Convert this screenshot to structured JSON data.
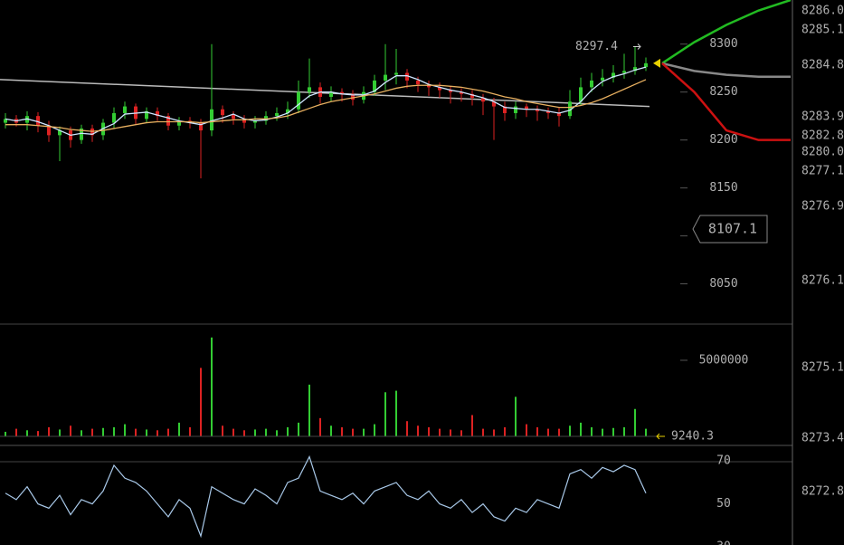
{
  "chart_data": [
    {
      "type": "candlestick",
      "open": [
        8218,
        8222,
        8218,
        8225,
        8215,
        8205,
        8210,
        8200,
        8212,
        8205,
        8218,
        8228,
        8235,
        8222,
        8230,
        8225,
        8215,
        8220,
        8218,
        8210,
        8232,
        8226,
        8222,
        8218,
        8220,
        8225,
        8228,
        8232,
        8250,
        8255,
        8245,
        8250,
        8248,
        8242,
        8250,
        8262,
        8268,
        8270,
        8262,
        8258,
        8255,
        8252,
        8250,
        8248,
        8244,
        8240,
        8235,
        8228,
        8235,
        8232,
        8230,
        8228,
        8225,
        8240,
        8255,
        8262,
        8265,
        8270,
        8272,
        8276
      ],
      "high": [
        8228,
        8226,
        8230,
        8229,
        8220,
        8214,
        8214,
        8216,
        8216,
        8222,
        8234,
        8240,
        8238,
        8234,
        8234,
        8228,
        8224,
        8224,
        8222,
        8300,
        8236,
        8230,
        8226,
        8225,
        8230,
        8234,
        8240,
        8262,
        8285,
        8260,
        8256,
        8254,
        8252,
        8256,
        8268,
        8300,
        8295,
        8274,
        8266,
        8262,
        8260,
        8256,
        8254,
        8252,
        8248,
        8244,
        8240,
        8240,
        8238,
        8236,
        8234,
        8234,
        8252,
        8265,
        8270,
        8274,
        8278,
        8290,
        8297.4,
        8286
      ],
      "low": [
        8212,
        8214,
        8210,
        8208,
        8198,
        8178,
        8192,
        8196,
        8198,
        8200,
        8212,
        8222,
        8216,
        8218,
        8220,
        8210,
        8210,
        8212,
        8160,
        8204,
        8218,
        8216,
        8212,
        8212,
        8216,
        8220,
        8222,
        8228,
        8244,
        8238,
        8240,
        8240,
        8236,
        8238,
        8246,
        8252,
        8258,
        8254,
        8250,
        8246,
        8244,
        8238,
        8240,
        8236,
        8226,
        8200,
        8220,
        8222,
        8224,
        8220,
        8222,
        8214,
        8222,
        8236,
        8250,
        8256,
        8260,
        8264,
        8268,
        8272
      ],
      "close": [
        8222,
        8218,
        8225,
        8215,
        8205,
        8210,
        8200,
        8212,
        8205,
        8218,
        8228,
        8235,
        8222,
        8230,
        8225,
        8215,
        8220,
        8218,
        8210,
        8232,
        8226,
        8222,
        8218,
        8220,
        8225,
        8228,
        8232,
        8250,
        8255,
        8245,
        8250,
        8248,
        8242,
        8250,
        8262,
        8268,
        8270,
        8262,
        8258,
        8255,
        8252,
        8250,
        8248,
        8244,
        8240,
        8235,
        8228,
        8235,
        8232,
        8230,
        8228,
        8225,
        8240,
        8255,
        8262,
        8265,
        8270,
        8272,
        8276,
        8280
      ],
      "up_color": "#33cc33",
      "down_color": "#dd2222",
      "series": [
        {
          "color": "#cfe6ff",
          "values": [
            8222,
            8220,
            8222,
            8219,
            8215,
            8210,
            8205,
            8207,
            8206,
            8212,
            8217,
            8227,
            8228,
            8229,
            8226,
            8223,
            8220,
            8218,
            8216,
            8220,
            8223,
            8227,
            8222,
            8220,
            8221,
            8224,
            8228,
            8237,
            8246,
            8250,
            8250,
            8248,
            8247,
            8247,
            8251,
            8260,
            8267,
            8267,
            8263,
            8258,
            8255,
            8252,
            8250,
            8247,
            8244,
            8240,
            8234,
            8233,
            8232,
            8232,
            8230,
            8228,
            8231,
            8240,
            8252,
            8261,
            8266,
            8269,
            8273,
            8276
          ]
        },
        {
          "color": "#e8b060",
          "values": [
            8216,
            8216,
            8216,
            8215,
            8214,
            8213,
            8211,
            8210,
            8209,
            8210,
            8212,
            8214,
            8216,
            8218,
            8219,
            8219,
            8219,
            8219,
            8218,
            8219,
            8220,
            8221,
            8221,
            8222,
            8222,
            8223,
            8225,
            8229,
            8233,
            8237,
            8240,
            8242,
            8244,
            8246,
            8248,
            8251,
            8254,
            8256,
            8257,
            8257,
            8257,
            8256,
            8255,
            8253,
            8251,
            8248,
            8245,
            8243,
            8240,
            8238,
            8236,
            8234,
            8234,
            8236,
            8239,
            8243,
            8248,
            8253,
            8258,
            8263
          ]
        }
      ],
      "trend_line": {
        "color": "#bbbbbb",
        "values": [
          8263,
          8235
        ]
      },
      "forecast": [
        {
          "color": "#22bb22",
          "values": [
            8280,
            8302,
            8320,
            8335,
            8346
          ]
        },
        {
          "color": "#888888",
          "values": [
            8280,
            8272,
            8268,
            8266,
            8266
          ]
        },
        {
          "color": "#cc1111",
          "values": [
            8280,
            8250,
            8210,
            8200,
            8200
          ]
        }
      ],
      "high_marker": 8297.4,
      "price_marker": 8107.1,
      "ylim": [
        8008,
        8346
      ],
      "yticks": [
        8050,
        8100,
        8150,
        8200,
        8250,
        8300
      ]
    },
    {
      "type": "bar",
      "values": [
        300000,
        500000,
        400000,
        350000,
        600000,
        450000,
        700000,
        400000,
        500000,
        550000,
        600000,
        800000,
        500000,
        450000,
        400000,
        500000,
        900000,
        600000,
        4500000,
        6500000,
        700000,
        500000,
        400000,
        450000,
        500000,
        400000,
        600000,
        900000,
        3400000,
        1200000,
        700000,
        600000,
        500000,
        500000,
        800000,
        2900000,
        3000000,
        1000000,
        700000,
        600000,
        500000,
        450000,
        400000,
        1400000,
        500000,
        450000,
        600000,
        2600000,
        800000,
        600000,
        500000,
        500000,
        700000,
        900000,
        600000,
        500000,
        550000,
        600000,
        1800000,
        500000
      ],
      "current_value": 9240.3,
      "ylim": [
        0,
        7260000
      ],
      "yticks": [
        5000000
      ]
    },
    {
      "type": "line",
      "color": "#a8c8e8",
      "values": [
        55,
        52,
        58,
        50,
        48,
        54,
        45,
        52,
        50,
        56,
        68,
        62,
        60,
        56,
        50,
        44,
        52,
        48,
        35,
        58,
        55,
        52,
        50,
        57,
        54,
        50,
        60,
        62,
        72,
        56,
        54,
        52,
        55,
        50,
        56,
        58,
        60,
        54,
        52,
        56,
        50,
        48,
        52,
        46,
        50,
        44,
        42,
        48,
        46,
        52,
        50,
        48,
        64,
        66,
        62,
        67,
        65,
        68,
        66,
        55
      ],
      "ylim": [
        30,
        76
      ],
      "yticks": [
        30,
        50,
        70
      ]
    }
  ],
  "right_scale_labels": [
    "8286.0",
    "8285.1",
    "8284.8",
    "8283.9",
    "8282.8",
    "8280.0",
    "8277.1",
    "8276.9",
    "8276.1",
    "8275.1",
    "8273.4",
    "8272.8"
  ]
}
